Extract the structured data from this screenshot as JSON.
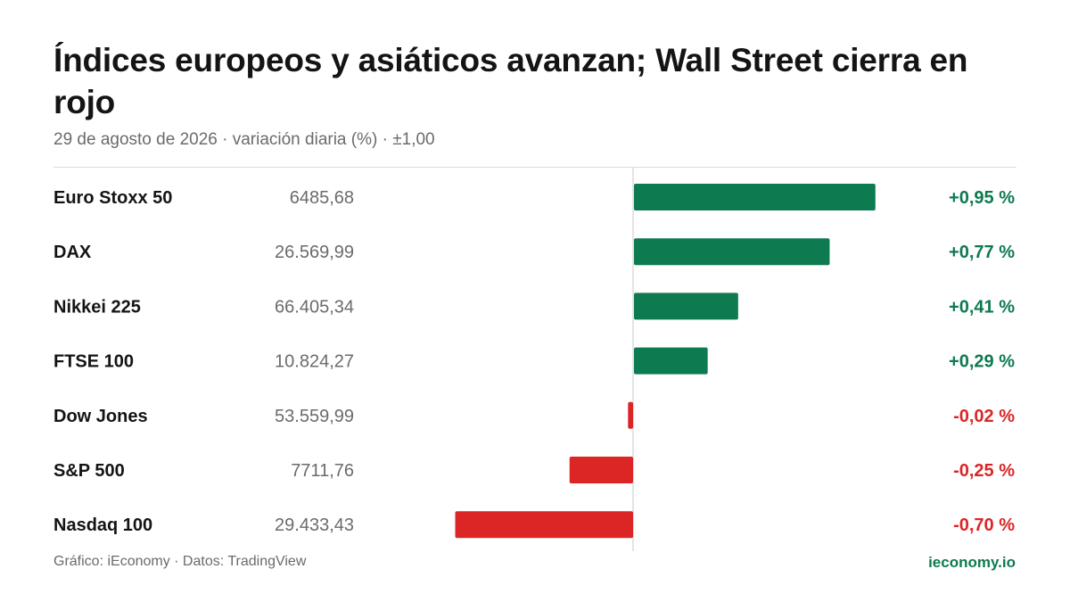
{
  "header": {
    "title": "Índices europeos y asiáticos avanzan; Wall Street cierra en rojo",
    "subtitle": "29 de agosto de 2026 · variación diaria (%) · ±1,00"
  },
  "footer": {
    "source": "Gráfico: iEconomy · Datos: TradingView",
    "brand": "ieconomy.io"
  },
  "colors": {
    "positive": "#0e7a4f",
    "negative": "#dc2626",
    "label": "#141414",
    "value": "#6b6b6b",
    "axis": "#dcdcdc"
  },
  "chart_data": {
    "type": "bar",
    "orientation": "horizontal",
    "xlim": [
      -1.0,
      1.0
    ],
    "grid": false,
    "categories": [
      "Euro Stoxx 50",
      "DAX",
      "Nikkei 225",
      "FTSE 100",
      "Dow Jones",
      "S&P 500",
      "Nasdaq 100"
    ],
    "index_levels": [
      "6485,68",
      "26.569,99",
      "66.405,34",
      "10.824,27",
      "53.559,99",
      "7711,76",
      "29.433,43"
    ],
    "values": [
      0.95,
      0.77,
      0.41,
      0.29,
      -0.02,
      -0.25,
      -0.7
    ],
    "value_labels": [
      "+0,95 %",
      "+0,77 %",
      "+0,41 %",
      "+0,29 %",
      "-0,02 %",
      "-0,25 %",
      "-0,70 %"
    ]
  }
}
